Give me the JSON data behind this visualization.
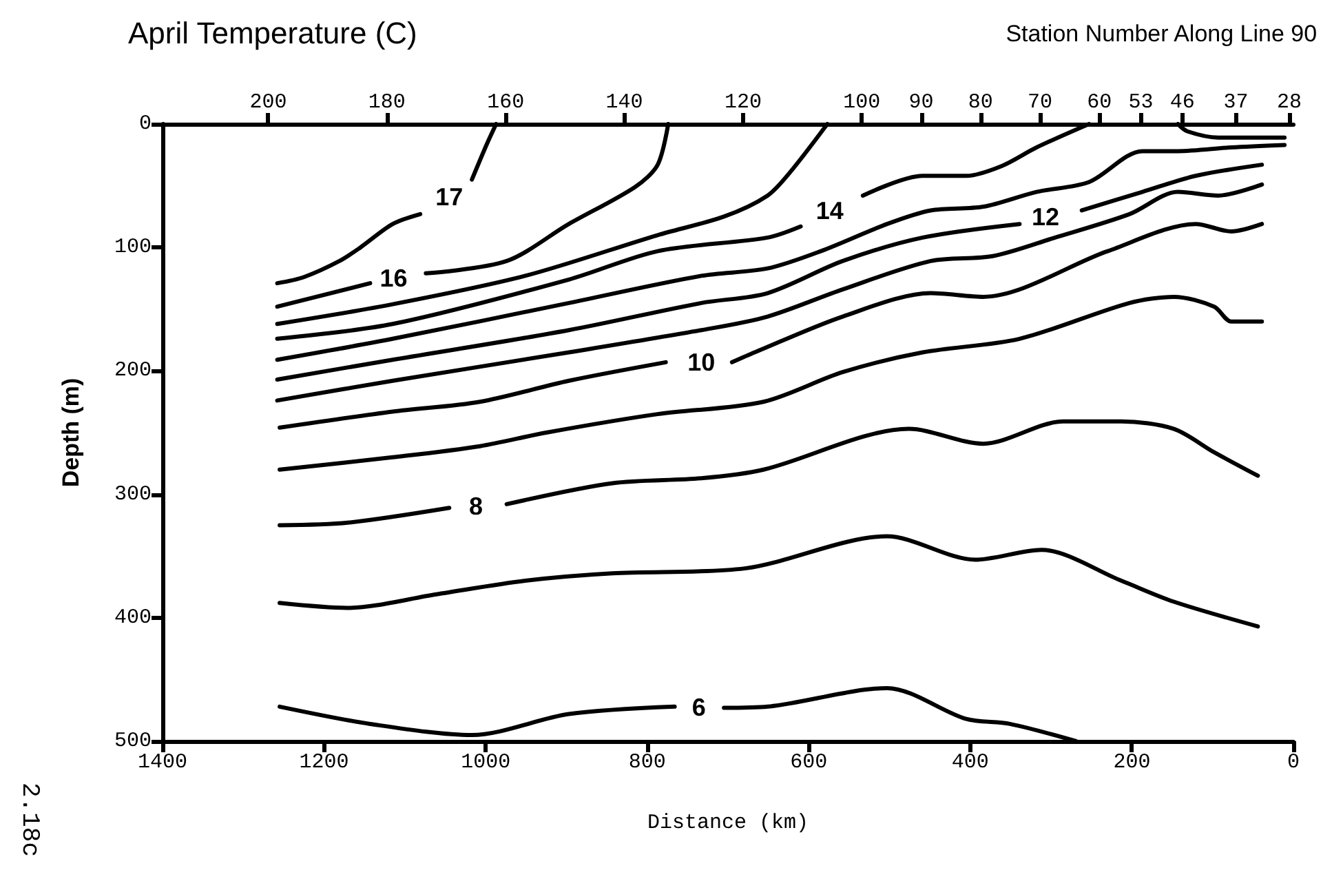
{
  "chart_data": {
    "type": "line",
    "title": "April Temperature (C)",
    "xlabel": "Distance (km)",
    "ylabel": "Depth (m)",
    "x2label": "Station Number Along Line 90",
    "xlim": [
      1400,
      0
    ],
    "xticks": [
      1400,
      1200,
      1000,
      800,
      600,
      400,
      200,
      0
    ],
    "ylim": [
      500,
      0
    ],
    "yticks": [
      0,
      100,
      200,
      300,
      400,
      500
    ],
    "grid": false,
    "legend": false,
    "marker": "none",
    "line_style": "solid",
    "x2lim": [
      217.8,
      27.3
    ],
    "x2ticks": [
      200,
      180,
      160,
      140,
      120,
      100,
      90,
      80,
      70,
      60,
      53,
      46,
      37,
      28
    ],
    "annotations": [
      "2.18c"
    ],
    "series": [
      {
        "name": "17",
        "color": "#000000",
        "x": [
          1258,
          1225,
          1181,
          1155,
          1115,
          1081,
          1045,
          1017,
          999,
          987
        ],
        "values": [
          129,
          124,
          111,
          100,
          81,
          73,
          null,
          45,
          17,
          0
        ]
      },
      {
        "name": "16",
        "color": "#000000",
        "x": [
          1258,
          1143,
          1114,
          1074,
          974,
          897,
          815,
          787,
          774
        ],
        "values": [
          148,
          129,
          null,
          121,
          111,
          81,
          51,
          33,
          0
        ]
      },
      {
        "color": "#000000",
        "x": [
          1258,
          1115,
          951,
          787,
          705,
          651,
          623,
          577
        ],
        "values": [
          162,
          146,
          123,
          90,
          75,
          58,
          39,
          0
        ]
      },
      {
        "name": "14",
        "color": "#000000",
        "x": [
          1258,
          1115,
          897,
          787,
          651,
          610,
          574,
          533,
          459,
          405,
          361,
          318,
          253
        ],
        "values": [
          174,
          162,
          126,
          103,
          92,
          83,
          null,
          58,
          42,
          42,
          34,
          19,
          0
        ]
      },
      {
        "color": "#000000",
        "x": [
          1258,
          1115,
          897,
          733,
          651,
          585,
          503,
          449,
          384,
          318,
          253,
          187,
          143,
          77,
          11
        ],
        "values": [
          191,
          174,
          145,
          123,
          117,
          103,
          81,
          70,
          67,
          55,
          47,
          22,
          22,
          19,
          17
        ]
      },
      {
        "name": "12",
        "color": "#000000",
        "x": [
          1258,
          1115,
          897,
          733,
          651,
          558,
          459,
          339,
          307,
          262,
          187,
          121,
          39
        ],
        "values": [
          207,
          191,
          167,
          145,
          137,
          111,
          92,
          81,
          null,
          70,
          55,
          42,
          33
        ]
      },
      {
        "color": "#000000",
        "x": [
          1258,
          1115,
          897,
          733,
          651,
          558,
          449,
          372,
          295,
          203,
          143,
          93,
          39
        ],
        "values": [
          224,
          208,
          185,
          167,
          156,
          134,
          111,
          107,
          92,
          73,
          55,
          58,
          49
        ]
      },
      {
        "name": "10",
        "color": "#000000",
        "x": [
          1255,
          1115,
          1007,
          897,
          777,
          733,
          695,
          667,
          558,
          449,
          384,
          230,
          121,
          77,
          39
        ],
        "values": [
          246,
          233,
          225,
          208,
          193,
          null,
          193,
          185,
          156,
          137,
          140,
          103,
          81,
          87,
          81
        ]
      },
      {
        "color": "#000000",
        "x": [
          1255,
          1115,
          1007,
          925,
          787,
          656,
          558,
          459,
          339,
          203,
          148,
          98,
          77,
          39
        ],
        "values": [
          280,
          270,
          261,
          250,
          235,
          225,
          201,
          185,
          174,
          145,
          140,
          148,
          160,
          160
        ]
      },
      {
        "name": "8",
        "color": "#000000",
        "x": [
          1255,
          1171,
          1045,
          1012,
          974,
          843,
          733,
          656,
          476,
          384,
          285,
          213,
          148,
          98,
          44
        ],
        "values": [
          325,
          323,
          311,
          null,
          308,
          291,
          287,
          280,
          247,
          259,
          241,
          241,
          247,
          266,
          285
        ]
      },
      {
        "color": "#000000",
        "x": [
          1255,
          1171,
          1061,
          951,
          843,
          679,
          503,
          394,
          312,
          213,
          148,
          44
        ],
        "values": [
          388,
          392,
          381,
          370,
          364,
          360,
          334,
          353,
          345,
          370,
          387,
          407
        ]
      },
      {
        "name": "6",
        "color": "#000000",
        "x": [
          1255,
          1143,
          1017,
          897,
          766,
          736,
          705,
          651,
          503,
          405,
          351,
          269
        ],
        "values": [
          472,
          486,
          495,
          478,
          472,
          null,
          473,
          472,
          457,
          482,
          486,
          500
        ]
      },
      {
        "color": "#000000",
        "x": [
          143,
          131,
          93,
          11
        ],
        "values": [
          0,
          6,
          11,
          11
        ]
      }
    ]
  }
}
